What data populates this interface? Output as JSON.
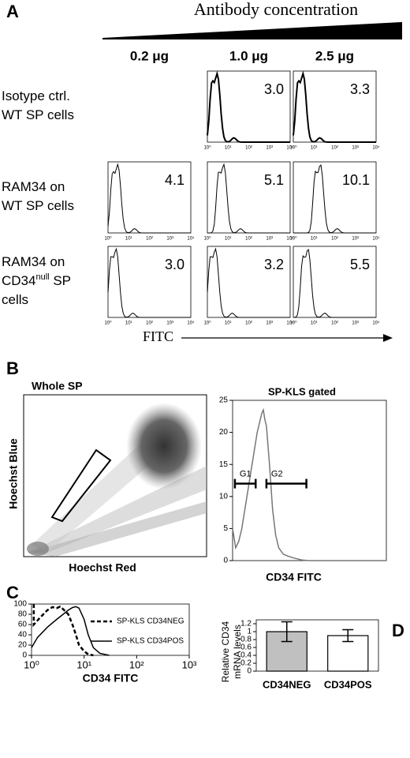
{
  "figure": {
    "panel_a": {
      "label": "A",
      "title": "Antibody concentration",
      "columns": [
        "0.2 μg",
        "1.0 μg",
        "2.5 μg"
      ],
      "rows": [
        {
          "label": [
            [
              {
                "text": "Isotype ctrl."
              }
            ],
            [
              {
                "text": "WT SP cells"
              }
            ]
          ],
          "values": [
            null,
            "3.0",
            "3.3"
          ]
        },
        {
          "label": [
            [
              {
                "text": "RAM34 on"
              }
            ],
            [
              {
                "text": "WT SP cells"
              }
            ]
          ],
          "values": [
            "4.1",
            "5.1",
            "10.1"
          ]
        },
        {
          "label": [
            [
              {
                "text": "RAM34 on"
              }
            ],
            [
              {
                "text": "CD34"
              },
              {
                "text": "null",
                "sup": true
              },
              {
                "text": " SP"
              }
            ],
            [
              {
                "text": "cells"
              }
            ]
          ],
          "values": [
            "3.0",
            "3.2",
            "5.5"
          ]
        }
      ],
      "xtick_labels": [
        "10⁰",
        "10¹",
        "10²",
        "10³",
        "10⁴"
      ],
      "xlabel": "FITC"
    },
    "panel_b": {
      "label": "B",
      "title": "Whole SP",
      "xlabel": "Hoechst Red",
      "ylabel": "Hoechst Blue"
    },
    "panel_c": {
      "label": "C"
    },
    "panel_d": {
      "label": "D"
    }
  },
  "chart_data": [
    {
      "type": "line",
      "title": "SP-KLS gated",
      "xlabel": "CD34 FITC",
      "color": "#777777",
      "x": [
        0,
        2,
        4,
        6,
        8,
        10,
        12,
        14,
        16,
        18,
        19,
        20,
        21,
        22,
        24,
        26,
        28,
        30,
        33,
        36,
        40,
        45,
        50,
        60,
        80,
        100
      ],
      "values": [
        5,
        2,
        3,
        5,
        8,
        11,
        14,
        17,
        20,
        22,
        23,
        23.5,
        22,
        21,
        15,
        8,
        4,
        2,
        1,
        0.7,
        0.4,
        0.1,
        0,
        0,
        0,
        0
      ],
      "xlim": [
        0,
        100
      ],
      "ylim": [
        0,
        25
      ],
      "yticks": [
        0,
        5,
        10,
        15,
        20,
        25
      ],
      "annotations": [
        {
          "label": "G1",
          "x": [
            1.5,
            15
          ],
          "y": 12
        },
        {
          "label": "G2",
          "x": [
            22,
            48
          ],
          "y": 12
        }
      ]
    },
    {
      "type": "line",
      "xlabel": "CD34 FITC",
      "xscale": "log",
      "xlim": [
        1,
        1000
      ],
      "xticks": [
        {
          "value": 1,
          "label": "10⁰"
        },
        {
          "value": 10,
          "label": "10¹"
        },
        {
          "value": 100,
          "label": "10²"
        },
        {
          "value": 1000,
          "label": "10³"
        }
      ],
      "ylim": [
        0,
        100
      ],
      "yticks": [
        0,
        20,
        40,
        60,
        80,
        100
      ],
      "series": [
        {
          "name": "SP-KLS CD34NEG",
          "color": "#000000",
          "dash": true,
          "x": [
            1.1,
            1.1,
            1.5,
            2,
            2.5,
            3,
            3.5,
            4,
            5,
            6,
            7,
            8,
            10,
            12,
            15
          ],
          "values": [
            100,
            60,
            75,
            88,
            94,
            92,
            95,
            90,
            80,
            60,
            40,
            20,
            8,
            2,
            0
          ]
        },
        {
          "name": "SP-KLS CD34POS",
          "color": "#000000",
          "dash": false,
          "x": [
            1,
            1.3,
            2,
            3,
            4,
            5,
            6,
            7,
            8,
            10,
            12,
            15,
            20,
            30
          ],
          "values": [
            15,
            35,
            55,
            70,
            80,
            88,
            93,
            95,
            92,
            70,
            40,
            15,
            4,
            0
          ]
        }
      ]
    },
    {
      "type": "bar",
      "ylabel": [
        "Relative CD34",
        "mRNA levels"
      ],
      "categories": [
        "CD34NEG",
        "CD34POS"
      ],
      "values": [
        1.0,
        0.9
      ],
      "errors": [
        0.25,
        0.15
      ],
      "colors": [
        "#c0c0c0",
        "#ffffff"
      ],
      "ylim": [
        0,
        1.3
      ],
      "yticks": [
        0,
        0.2,
        0.4,
        0.6,
        0.8,
        1,
        1.2
      ]
    }
  ]
}
